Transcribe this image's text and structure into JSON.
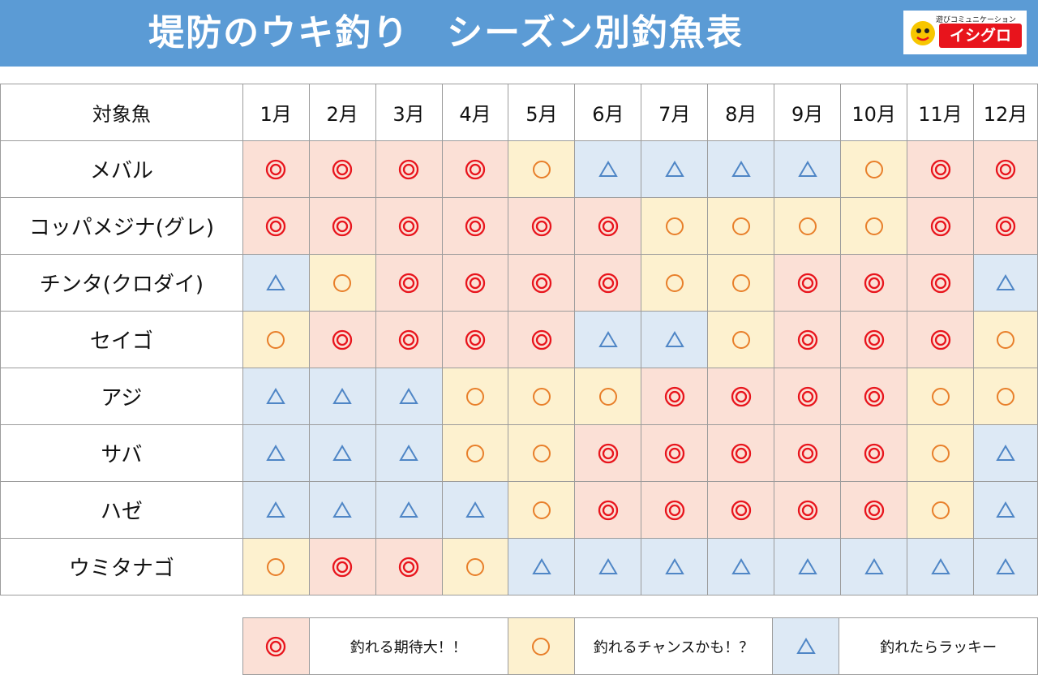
{
  "header": {
    "title": "堤防のウキ釣り　シーズン別釣魚表",
    "logo_sub": "遊びコミュニケーション",
    "logo_main": "イシグロ"
  },
  "table": {
    "corner_label": "対象魚",
    "months": [
      "1月",
      "2月",
      "3月",
      "4月",
      "5月",
      "6月",
      "7月",
      "8月",
      "9月",
      "10月",
      "11月",
      "12月"
    ],
    "rows": [
      {
        "fish": "メバル",
        "values": [
          "◎",
          "◎",
          "◎",
          "◎",
          "○",
          "△",
          "△",
          "△",
          "△",
          "○",
          "◎",
          "◎"
        ]
      },
      {
        "fish": "コッパメジナ(グレ)",
        "values": [
          "◎",
          "◎",
          "◎",
          "◎",
          "◎",
          "◎",
          "○",
          "○",
          "○",
          "○",
          "◎",
          "◎"
        ]
      },
      {
        "fish": "チンタ(クロダイ)",
        "values": [
          "△",
          "○",
          "◎",
          "◎",
          "◎",
          "◎",
          "○",
          "○",
          "◎",
          "◎",
          "◎",
          "△"
        ]
      },
      {
        "fish": "セイゴ",
        "values": [
          "○",
          "◎",
          "◎",
          "◎",
          "◎",
          "△",
          "△",
          "○",
          "◎",
          "◎",
          "◎",
          "○"
        ]
      },
      {
        "fish": "アジ",
        "values": [
          "△",
          "△",
          "△",
          "○",
          "○",
          "○",
          "◎",
          "◎",
          "◎",
          "◎",
          "○",
          "○"
        ]
      },
      {
        "fish": "サバ",
        "values": [
          "△",
          "△",
          "△",
          "○",
          "○",
          "◎",
          "◎",
          "◎",
          "◎",
          "◎",
          "○",
          "△"
        ]
      },
      {
        "fish": "ハゼ",
        "values": [
          "△",
          "△",
          "△",
          "△",
          "○",
          "◎",
          "◎",
          "◎",
          "◎",
          "◎",
          "○",
          "△"
        ]
      },
      {
        "fish": "ウミタナゴ",
        "values": [
          "○",
          "◎",
          "◎",
          "○",
          "△",
          "△",
          "△",
          "△",
          "△",
          "△",
          "△",
          "△"
        ]
      }
    ]
  },
  "legend": [
    {
      "symbol": "◎",
      "label": "釣れる期待大！！"
    },
    {
      "symbol": "○",
      "label": "釣れるチャンスかも！？"
    },
    {
      "symbol": "△",
      "label": "釣れたらラッキー"
    }
  ],
  "colors": {
    "banner": "#5b9bd5",
    "best_bg": "#fbe0d6",
    "good_bg": "#fdf1cf",
    "luck_bg": "#dde9f5",
    "best_sym": "#e8141c",
    "good_sym": "#e87f2a",
    "luck_sym": "#4f86c6"
  }
}
